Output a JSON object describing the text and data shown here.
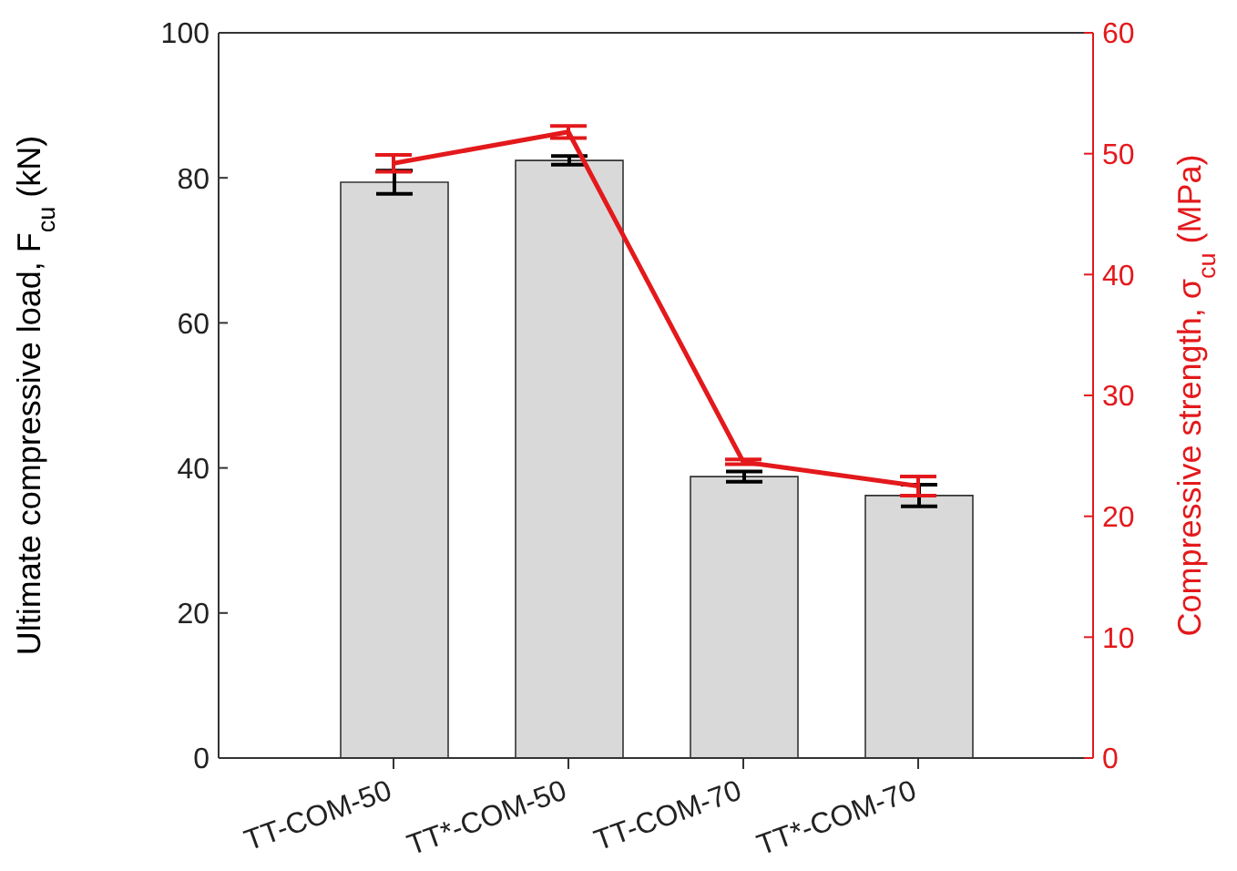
{
  "chart_data": {
    "type": "bar",
    "categories": [
      "TT-COM-50",
      "TT*-COM-50",
      "TT-COM-70",
      "TT*-COM-70"
    ],
    "series": [
      {
        "color": "#d9d9d9",
        "values": [
          79.4,
          82.4,
          38.8,
          36.2
        ],
        "errors": [
          1.6,
          0.6,
          0.7,
          1.5
        ]
      },
      {
        "type": "line",
        "axis": "y2",
        "color": "#e3191c",
        "values": [
          49.2,
          51.8,
          24.5,
          22.5
        ],
        "errors": [
          0.7,
          0.5,
          0.2,
          0.8
        ]
      }
    ],
    "ylabel": "Ultimate compressive load, F$_{cu}$ (kN)",
    "y2label": "Compressive strength, σ$_{cu}$ (MPa)",
    "ylim": [
      0,
      100
    ],
    "yticks": [
      0,
      20,
      40,
      60,
      80,
      100
    ],
    "y2lim": [
      0,
      60
    ],
    "y2ticks": [
      0,
      10,
      20,
      30,
      40,
      50,
      60
    ],
    "grid": false,
    "legend": false,
    "marker": "none",
    "line_style": "solid"
  }
}
